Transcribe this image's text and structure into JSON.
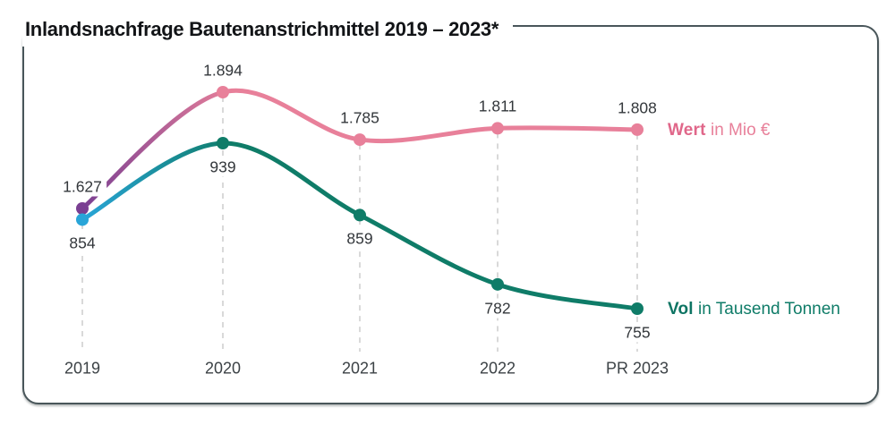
{
  "title": "Inlandsnachfrage Bautenanstrichmittel 2019 – 2023*",
  "chart_data": {
    "type": "line",
    "categories": [
      "2019",
      "2020",
      "2021",
      "2022",
      "PR 2023"
    ],
    "series": [
      {
        "name": "Wert",
        "unit_label": "in Mio €",
        "values": [
          1627,
          1894,
          1785,
          1811,
          1808
        ],
        "value_labels": [
          "1.627",
          "1.894",
          "1.785",
          "1.811",
          "1.808"
        ],
        "label_position": "above",
        "color": "#e8809a",
        "legend_bold_color": "#e0678a",
        "start_point_color": "#7a3f92"
      },
      {
        "name": "Vol",
        "unit_label": "in Tausend Tonnen",
        "values": [
          854,
          939,
          859,
          782,
          755
        ],
        "value_labels": [
          "854",
          "939",
          "859",
          "782",
          "755"
        ],
        "label_position": "below",
        "color": "#0f7c68",
        "legend_bold_color": "#0d7463",
        "start_point_color": "#29a5d8"
      }
    ],
    "grid": "vertical-dashed",
    "legend_position": "right of line end",
    "axis_range_wert": [
      1627,
      1894
    ],
    "axis_range_vol": [
      755,
      939
    ]
  },
  "colors": {
    "panel_border": "#49565a",
    "dashed_gridline": "#d9d9d9",
    "value_text": "#33373b",
    "axis_text": "#3c4246",
    "background": "#ffffff"
  }
}
